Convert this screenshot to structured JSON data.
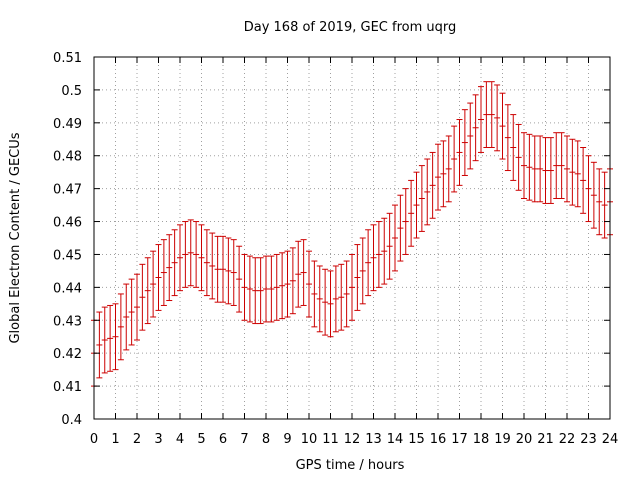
{
  "chart_data": {
    "type": "line",
    "title": "Day 168 of 2019, GEC from uqrg",
    "xlabel": "GPS time / hours",
    "ylabel": "Global Electron Content / GECUs",
    "xlim": [
      0,
      24
    ],
    "ylim": [
      0.4,
      0.51
    ],
    "grid": true,
    "x_ticks": [
      "0",
      "1",
      "2",
      "3",
      "4",
      "5",
      "6",
      "7",
      "8",
      "9",
      "10",
      "11",
      "12",
      "13",
      "14",
      "15",
      "16",
      "17",
      "18",
      "19",
      "20",
      "21",
      "22",
      "23",
      "24"
    ],
    "y_ticks": [
      "0.4",
      "0.41",
      "0.42",
      "0.43",
      "0.44",
      "0.45",
      "0.46",
      "0.47",
      "0.48",
      "0.49",
      "0.5",
      "0.51"
    ],
    "error_bar": 0.01,
    "series_color": "#cc0000",
    "series": [
      {
        "x": [
          0,
          0.25,
          0.5,
          0.75,
          1,
          1.25,
          1.5,
          1.75,
          2,
          2.25,
          2.5,
          2.75,
          3,
          3.25,
          3.5,
          3.75,
          4,
          4.25,
          4.5,
          4.75,
          5,
          5.25,
          5.5,
          5.75,
          6,
          6.25,
          6.5,
          6.75,
          7,
          7.25,
          7.5,
          7.75,
          8,
          8.25,
          8.5,
          8.75,
          9,
          9.25,
          9.5,
          9.75,
          10,
          10.25,
          10.5,
          10.75,
          11,
          11.25,
          11.5,
          11.75,
          12,
          12.25,
          12.5,
          12.75,
          13,
          13.25,
          13.5,
          13.75,
          14,
          14.25,
          14.5,
          14.75,
          15,
          15.25,
          15.5,
          15.75,
          16,
          16.25,
          16.5,
          16.75,
          17,
          17.25,
          17.5,
          17.75,
          18,
          18.25,
          18.5,
          18.75,
          19,
          19.25,
          19.5,
          19.75,
          20,
          20.25,
          20.5,
          20.75,
          21,
          21.25,
          21.5,
          21.75,
          22,
          22.25,
          22.5,
          22.75,
          23,
          23.25,
          23.5,
          23.75,
          24
        ],
        "y": [
          0.42,
          0.4225,
          0.424,
          0.4245,
          0.425,
          0.428,
          0.431,
          0.4325,
          0.434,
          0.437,
          0.439,
          0.441,
          0.443,
          0.4445,
          0.446,
          0.4475,
          0.449,
          0.45,
          0.4505,
          0.45,
          0.449,
          0.4475,
          0.4465,
          0.4455,
          0.4455,
          0.445,
          0.4445,
          0.4425,
          0.44,
          0.4395,
          0.439,
          0.439,
          0.4395,
          0.4395,
          0.44,
          0.4405,
          0.441,
          0.442,
          0.444,
          0.4445,
          0.441,
          0.438,
          0.4365,
          0.4355,
          0.435,
          0.4365,
          0.437,
          0.438,
          0.44,
          0.443,
          0.445,
          0.4475,
          0.449,
          0.45,
          0.451,
          0.4525,
          0.455,
          0.458,
          0.46,
          0.4625,
          0.465,
          0.467,
          0.469,
          0.471,
          0.4735,
          0.4745,
          0.476,
          0.479,
          0.481,
          0.484,
          0.486,
          0.4885,
          0.491,
          0.4925,
          0.4925,
          0.4915,
          0.489,
          0.4855,
          0.4825,
          0.4795,
          0.477,
          0.4765,
          0.476,
          0.476,
          0.4755,
          0.4755,
          0.477,
          0.477,
          0.476,
          0.475,
          0.4745,
          0.4725,
          0.47,
          0.468,
          0.466,
          0.465,
          0.466
        ]
      }
    ]
  }
}
